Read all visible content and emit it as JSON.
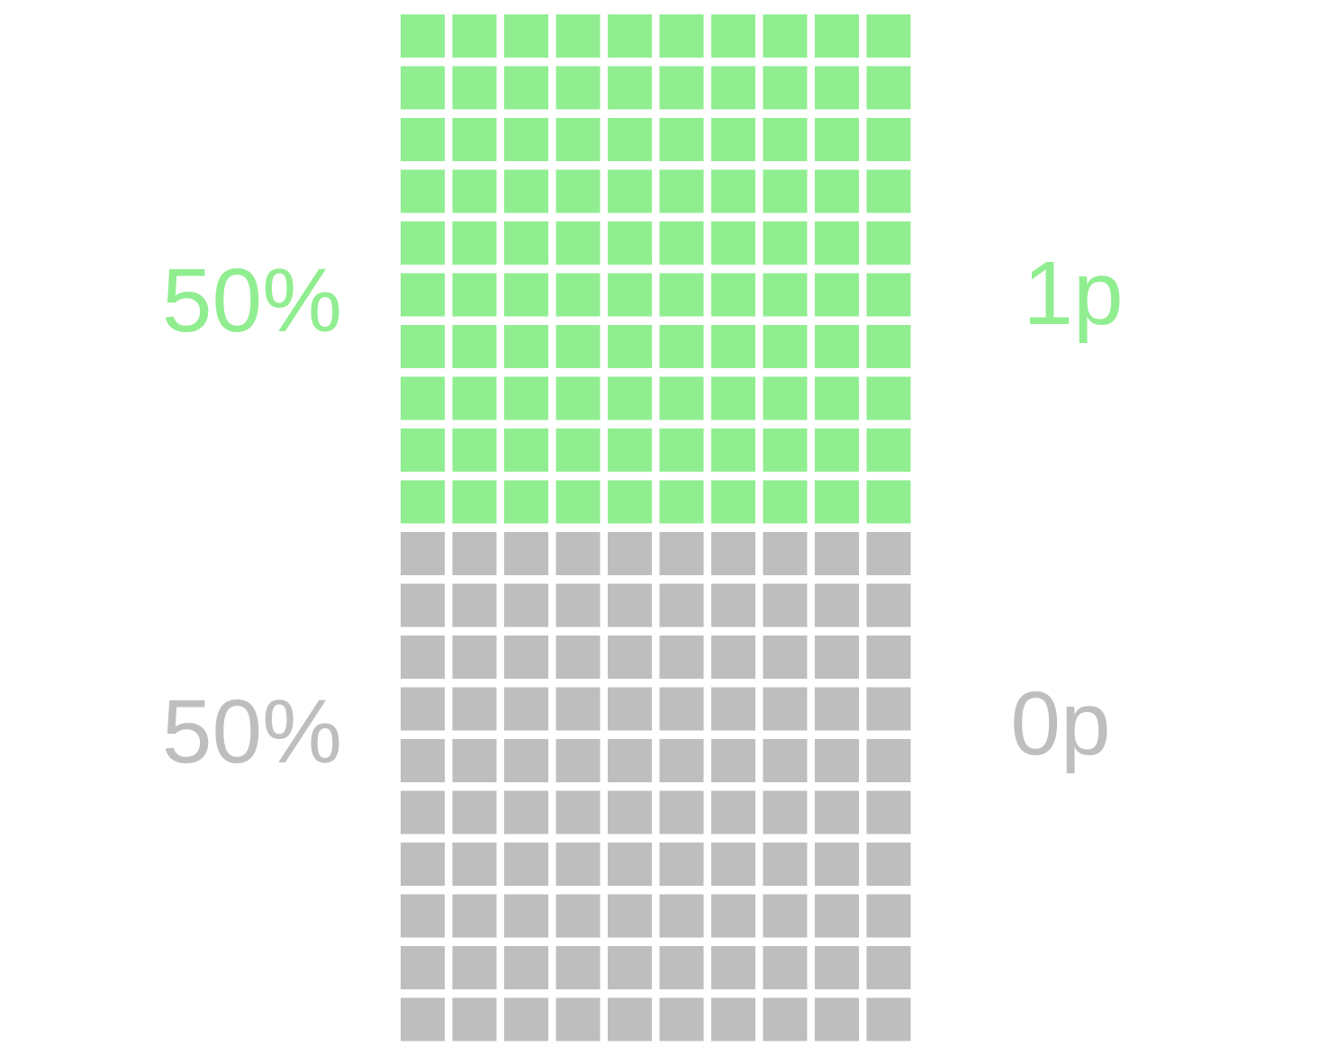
{
  "chart_data": {
    "type": "waffle",
    "grid": {
      "columns": 10,
      "rows_per_section": 10
    },
    "series": [
      {
        "name": "1p",
        "value": 50,
        "percent_label": "50%",
        "color": "#90ee90"
      },
      {
        "name": "0p",
        "value": 50,
        "percent_label": "50%",
        "color": "#bebebe"
      }
    ]
  }
}
